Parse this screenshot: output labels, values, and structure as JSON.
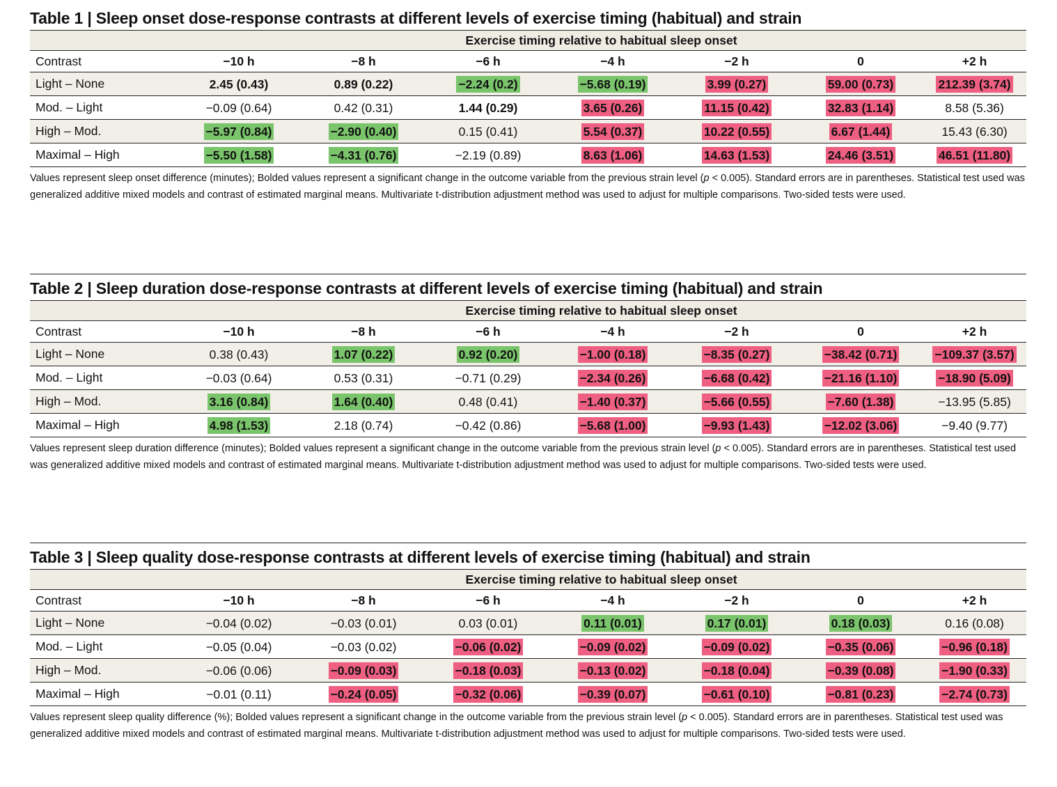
{
  "shared": {
    "super_header": "Exercise timing relative to habitual sleep onset",
    "col_first": "Contrast",
    "cols": [
      "−10 h",
      "−8 h",
      "−6 h",
      "−4 h",
      "−2 h",
      "0",
      "+2 h"
    ],
    "row_labels": [
      "Light – None",
      "Mod. – Light",
      "High – Mod.",
      "Maximal – High"
    ],
    "note_tail_prefix": "change in the outcome variable from the previous strain level (",
    "note_p": "p",
    "note_tail_suffix": " < 0.005). Standard errors are in parentheses. Statistical test used was generalized additive mixed models and contrast of estimated marginal means. Multivariate t-distribution adjustment method was used to adjust for multiple comparisons. Two-sided tests were used.",
    "colors": {
      "green": "#7ac56b",
      "red": "#ee5f82",
      "band": "#efece4"
    }
  },
  "tables": [
    {
      "title": "Table 1 | Sleep onset dose-response contrasts at different levels of exercise timing (habitual) and strain",
      "note_lead": "Values represent sleep onset difference (minutes); Bolded values represent a significant ",
      "rows": [
        [
          {
            "v": "2.45 (0.43)",
            "bold": true,
            "hl": ""
          },
          {
            "v": "0.89 (0.22)",
            "bold": true,
            "hl": ""
          },
          {
            "v": "−2.24 (0.2)",
            "bold": true,
            "hl": "green"
          },
          {
            "v": "−5.68 (0.19)",
            "bold": true,
            "hl": "green"
          },
          {
            "v": "3.99 (0.27)",
            "bold": true,
            "hl": "red"
          },
          {
            "v": "59.00 (0.73)",
            "bold": true,
            "hl": "red"
          },
          {
            "v": "212.39 (3.74)",
            "bold": true,
            "hl": "red"
          }
        ],
        [
          {
            "v": "−0.09 (0.64)",
            "bold": false,
            "hl": ""
          },
          {
            "v": "0.42 (0.31)",
            "bold": false,
            "hl": ""
          },
          {
            "v": "1.44 (0.29)",
            "bold": true,
            "hl": ""
          },
          {
            "v": "3.65 (0.26)",
            "bold": true,
            "hl": "red"
          },
          {
            "v": "11.15 (0.42)",
            "bold": true,
            "hl": "red"
          },
          {
            "v": "32.83 (1.14)",
            "bold": true,
            "hl": "red"
          },
          {
            "v": "8.58 (5.36)",
            "bold": false,
            "hl": ""
          }
        ],
        [
          {
            "v": "−5.97 (0.84)",
            "bold": true,
            "hl": "green"
          },
          {
            "v": "−2.90 (0.40)",
            "bold": true,
            "hl": "green"
          },
          {
            "v": "0.15 (0.41)",
            "bold": false,
            "hl": ""
          },
          {
            "v": "5.54 (0.37)",
            "bold": true,
            "hl": "red"
          },
          {
            "v": "10.22 (0.55)",
            "bold": true,
            "hl": "red"
          },
          {
            "v": "6.67 (1.44)",
            "bold": true,
            "hl": "red"
          },
          {
            "v": "15.43 (6.30)",
            "bold": false,
            "hl": ""
          }
        ],
        [
          {
            "v": "−5.50 (1.58)",
            "bold": true,
            "hl": "green"
          },
          {
            "v": "−4.31 (0.76)",
            "bold": true,
            "hl": "green"
          },
          {
            "v": "−2.19 (0.89)",
            "bold": false,
            "hl": ""
          },
          {
            "v": "8.63 (1.06)",
            "bold": true,
            "hl": "red"
          },
          {
            "v": "14.63 (1.53)",
            "bold": true,
            "hl": "red"
          },
          {
            "v": "24.46 (3.51)",
            "bold": true,
            "hl": "red"
          },
          {
            "v": "46.51 (11.80)",
            "bold": true,
            "hl": "red"
          }
        ]
      ]
    },
    {
      "title": "Table 2 | Sleep duration dose-response contrasts at different levels of exercise timing (habitual) and strain",
      "note_lead": "Values represent sleep duration difference (minutes); Bolded values represent a significant ",
      "rows": [
        [
          {
            "v": "0.38 (0.43)",
            "bold": false,
            "hl": ""
          },
          {
            "v": "1.07 (0.22)",
            "bold": true,
            "hl": "green"
          },
          {
            "v": "0.92 (0.20)",
            "bold": true,
            "hl": "green"
          },
          {
            "v": "−1.00 (0.18)",
            "bold": true,
            "hl": "red"
          },
          {
            "v": "−8.35 (0.27)",
            "bold": true,
            "hl": "red"
          },
          {
            "v": "−38.42 (0.71)",
            "bold": true,
            "hl": "red"
          },
          {
            "v": "−109.37 (3.57)",
            "bold": true,
            "hl": "red"
          }
        ],
        [
          {
            "v": "−0.03 (0.64)",
            "bold": false,
            "hl": ""
          },
          {
            "v": "0.53 (0.31)",
            "bold": false,
            "hl": ""
          },
          {
            "v": "−0.71 (0.29)",
            "bold": false,
            "hl": ""
          },
          {
            "v": "−2.34 (0.26)",
            "bold": true,
            "hl": "red"
          },
          {
            "v": "−6.68 (0.42)",
            "bold": true,
            "hl": "red"
          },
          {
            "v": "−21.16 (1.10)",
            "bold": true,
            "hl": "red"
          },
          {
            "v": "−18.90 (5.09)",
            "bold": true,
            "hl": "red"
          }
        ],
        [
          {
            "v": "3.16 (0.84)",
            "bold": true,
            "hl": "green"
          },
          {
            "v": "1.64 (0.40)",
            "bold": true,
            "hl": "green"
          },
          {
            "v": "0.48 (0.41)",
            "bold": false,
            "hl": ""
          },
          {
            "v": "−1.40 (0.37)",
            "bold": true,
            "hl": "red"
          },
          {
            "v": "−5.66 (0.55)",
            "bold": true,
            "hl": "red"
          },
          {
            "v": "−7.60 (1.38)",
            "bold": true,
            "hl": "red"
          },
          {
            "v": "−13.95 (5.85)",
            "bold": false,
            "hl": ""
          }
        ],
        [
          {
            "v": "4.98 (1.53)",
            "bold": true,
            "hl": "green"
          },
          {
            "v": "2.18 (0.74)",
            "bold": false,
            "hl": ""
          },
          {
            "v": "−0.42 (0.86)",
            "bold": false,
            "hl": ""
          },
          {
            "v": "−5.68 (1.00)",
            "bold": true,
            "hl": "red"
          },
          {
            "v": "−9.93 (1.43)",
            "bold": true,
            "hl": "red"
          },
          {
            "v": "−12.02 (3.06)",
            "bold": true,
            "hl": "red"
          },
          {
            "v": "−9.40 (9.77)",
            "bold": false,
            "hl": ""
          }
        ]
      ]
    },
    {
      "title": "Table 3 | Sleep quality dose-response contrasts at different levels of exercise timing (habitual) and strain",
      "note_lead": "Values represent sleep quality difference (%); Bolded values represent a significant ",
      "rows": [
        [
          {
            "v": "−0.04 (0.02)",
            "bold": false,
            "hl": ""
          },
          {
            "v": "−0.03 (0.01)",
            "bold": false,
            "hl": ""
          },
          {
            "v": "0.03 (0.01)",
            "bold": false,
            "hl": ""
          },
          {
            "v": "0.11 (0.01)",
            "bold": true,
            "hl": "green"
          },
          {
            "v": "0.17 (0.01)",
            "bold": true,
            "hl": "green"
          },
          {
            "v": "0.18 (0.03)",
            "bold": true,
            "hl": "green"
          },
          {
            "v": "0.16 (0.08)",
            "bold": false,
            "hl": ""
          }
        ],
        [
          {
            "v": "−0.05 (0.04)",
            "bold": false,
            "hl": ""
          },
          {
            "v": "−0.03 (0.02)",
            "bold": false,
            "hl": ""
          },
          {
            "v": "−0.06 (0.02)",
            "bold": true,
            "hl": "red"
          },
          {
            "v": "−0.09 (0.02)",
            "bold": true,
            "hl": "red"
          },
          {
            "v": "−0.09 (0.02)",
            "bold": true,
            "hl": "red"
          },
          {
            "v": "−0.35 (0.06)",
            "bold": true,
            "hl": "red"
          },
          {
            "v": "−0.96 (0.18)",
            "bold": true,
            "hl": "red"
          }
        ],
        [
          {
            "v": "−0.06 (0.06)",
            "bold": false,
            "hl": ""
          },
          {
            "v": "−0.09 (0.03)",
            "bold": true,
            "hl": "red"
          },
          {
            "v": "−0.18 (0.03)",
            "bold": true,
            "hl": "red"
          },
          {
            "v": "−0.13 (0.02)",
            "bold": true,
            "hl": "red"
          },
          {
            "v": "−0.18 (0.04)",
            "bold": true,
            "hl": "red"
          },
          {
            "v": "−0.39 (0.08)",
            "bold": true,
            "hl": "red"
          },
          {
            "v": "−1.90 (0.33)",
            "bold": true,
            "hl": "red"
          }
        ],
        [
          {
            "v": "−0.01 (0.11)",
            "bold": false,
            "hl": ""
          },
          {
            "v": "−0.24 (0.05)",
            "bold": true,
            "hl": "red"
          },
          {
            "v": "−0.32 (0.06)",
            "bold": true,
            "hl": "red"
          },
          {
            "v": "−0.39 (0.07)",
            "bold": true,
            "hl": "red"
          },
          {
            "v": "−0.61 (0.10)",
            "bold": true,
            "hl": "red"
          },
          {
            "v": "−0.81 (0.23)",
            "bold": true,
            "hl": "red"
          },
          {
            "v": "−2.74 (0.73)",
            "bold": true,
            "hl": "red"
          }
        ]
      ]
    }
  ]
}
